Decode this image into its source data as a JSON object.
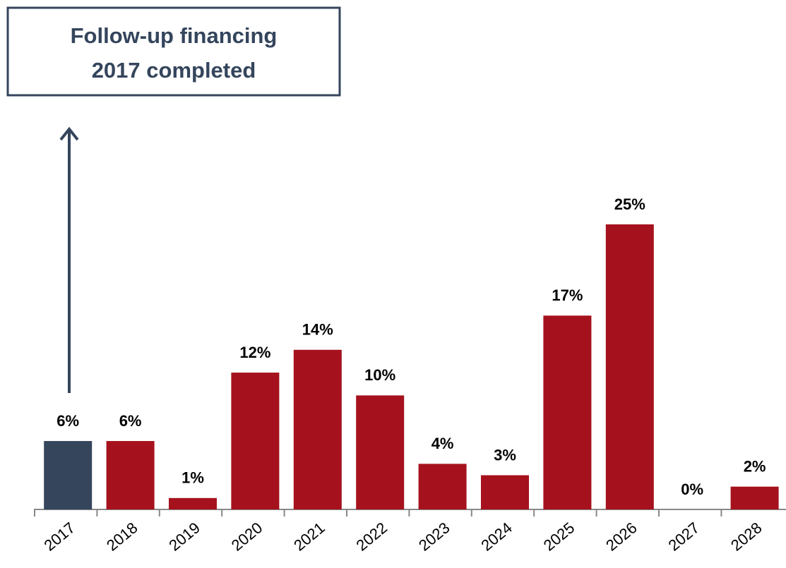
{
  "chart_data": {
    "type": "bar",
    "annotation": [
      "Follow-up financing",
      "2017 completed"
    ],
    "categories": [
      "2017",
      "2018",
      "2019",
      "2020",
      "2021",
      "2022",
      "2023",
      "2024",
      "2025",
      "2026",
      "2027",
      "2028"
    ],
    "values": [
      6,
      6,
      1,
      12,
      14,
      10,
      4,
      3,
      17,
      25,
      0,
      2
    ],
    "value_labels": [
      "6%",
      "6%",
      "1%",
      "12%",
      "14%",
      "10%",
      "4%",
      "3%",
      "17%",
      "25%",
      "0%",
      "2%"
    ],
    "colors": [
      "#34455c",
      "#a5121d",
      "#a5121d",
      "#a5121d",
      "#a5121d",
      "#a5121d",
      "#a5121d",
      "#a5121d",
      "#a5121d",
      "#a5121d",
      "#a5121d",
      "#a5121d"
    ]
  }
}
